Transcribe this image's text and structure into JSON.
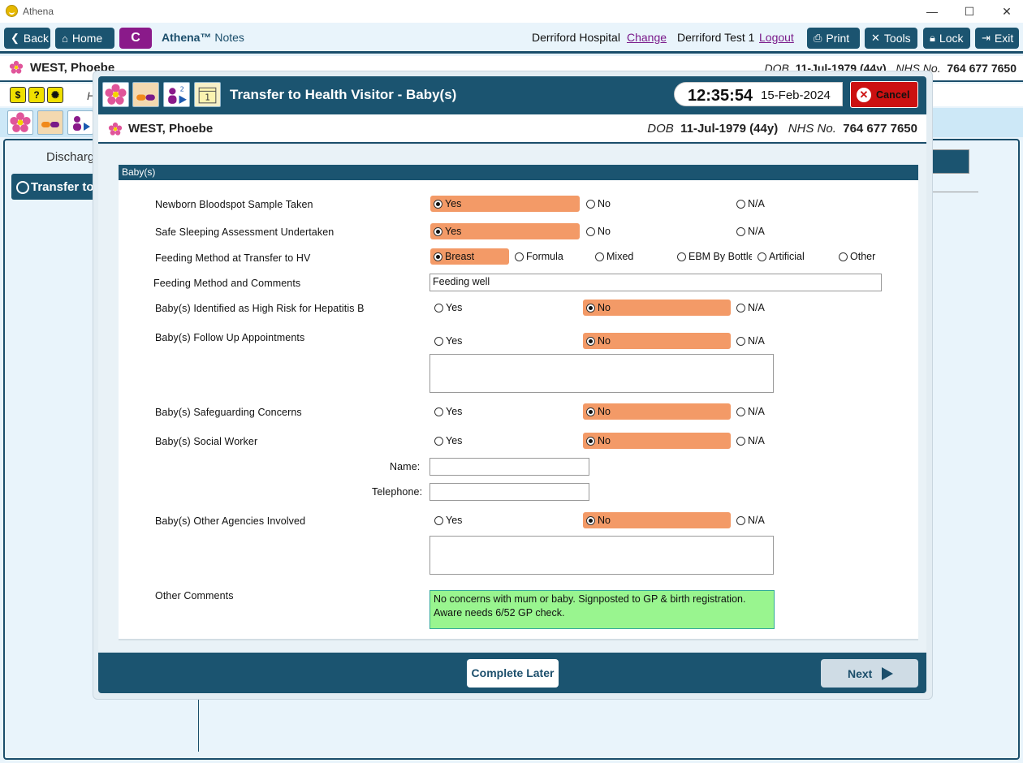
{
  "window": {
    "title": "Athena",
    "minimize": "—",
    "maximize": "☐",
    "close": "✕"
  },
  "toolbar": {
    "back": "Back",
    "home": "Home",
    "c_label": "C",
    "app_name": "Athena™",
    "app_section": "Notes",
    "hospital": "Derriford Hospital",
    "change": "Change",
    "user": "Derriford Test 1",
    "logout": "Logout",
    "print": "Print",
    "tools": "Tools",
    "lock": "Lock",
    "exit": "Exit"
  },
  "patient": {
    "name": "WEST, Phoebe",
    "dob_label": "DOB",
    "dob": "11-Jul-1979 (44y)",
    "nhs_label": "NHS No.",
    "nhs": "764 677 7650"
  },
  "background": {
    "h_letter": "H",
    "discharge": "Discharg",
    "transfer": "Transfer to"
  },
  "modal": {
    "title": "Transfer to Health Visitor - Baby(s)",
    "time": "12:35:54",
    "date": "15-Feb-2024",
    "cancel": "Cancel",
    "pill_count": "2",
    "section": "Baby(s)",
    "complete_later": "Complete Later",
    "next": "Next"
  },
  "form": {
    "yes": "Yes",
    "no": "No",
    "na": "N/A",
    "bloodspot": "Newborn Bloodspot Sample Taken",
    "safe_sleeping": "Safe Sleeping Assessment Undertaken",
    "feeding_method": "Feeding Method at Transfer to HV",
    "feeding_options": [
      "Breast",
      "Formula",
      "Mixed",
      "EBM By Bottle",
      "Artificial",
      "Other"
    ],
    "feeding_comments_label": "Feeding Method and Comments",
    "feeding_comments": "Feeding well",
    "hep_b": "Baby(s) Identified as High Risk for Hepatitis B",
    "follow_up": "Baby(s) Follow Up Appointments",
    "safeguarding": "Baby(s) Safeguarding Concerns",
    "social_worker": "Baby(s) Social Worker",
    "name_label": "Name:",
    "telephone_label": "Telephone:",
    "other_agencies": "Baby(s) Other Agencies Involved",
    "other_comments_label": "Other Comments",
    "other_comments": "No concerns with mum or baby. Signposted to GP & birth registration. Aware needs 6/52 GP check."
  },
  "colors": {
    "primary": "#1b5470",
    "selected": "#f39a67",
    "cancel": "#cc1111",
    "comment_bg": "#99f58f"
  }
}
